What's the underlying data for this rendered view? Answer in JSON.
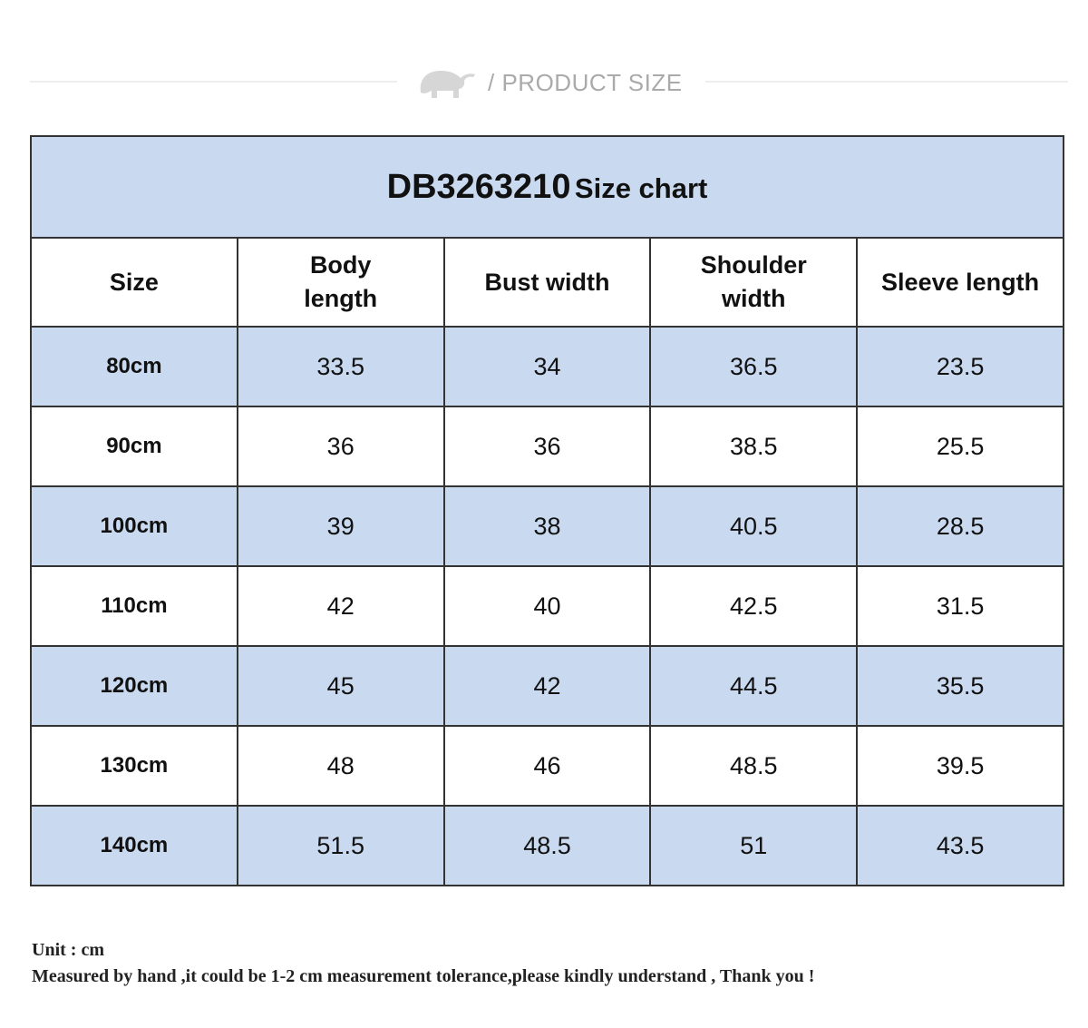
{
  "header": {
    "label": "/ PRODUCT SIZE"
  },
  "table": {
    "title": {
      "code": "DB3263210",
      "text": "Size chart"
    },
    "columns": [
      "Size",
      "Body length",
      "Bust width",
      "Shoulder width",
      "Sleeve length"
    ],
    "rows": [
      [
        "80cm",
        33.5,
        34,
        36.5,
        23.5
      ],
      [
        "90cm",
        36,
        36,
        38.5,
        25.5
      ],
      [
        "100cm",
        39,
        38,
        40.5,
        28.5
      ],
      [
        "110cm",
        42,
        40,
        42.5,
        31.5
      ],
      [
        "120cm",
        45,
        42,
        44.5,
        35.5
      ],
      [
        "130cm",
        48,
        46,
        48.5,
        39.5
      ],
      [
        "140cm",
        51.5,
        48.5,
        51,
        43.5
      ]
    ]
  },
  "notes": [
    "Unit : cm",
    "Measured by hand ,it could be 1-2 cm measurement tolerance,please kindly understand , Thank you !"
  ]
}
